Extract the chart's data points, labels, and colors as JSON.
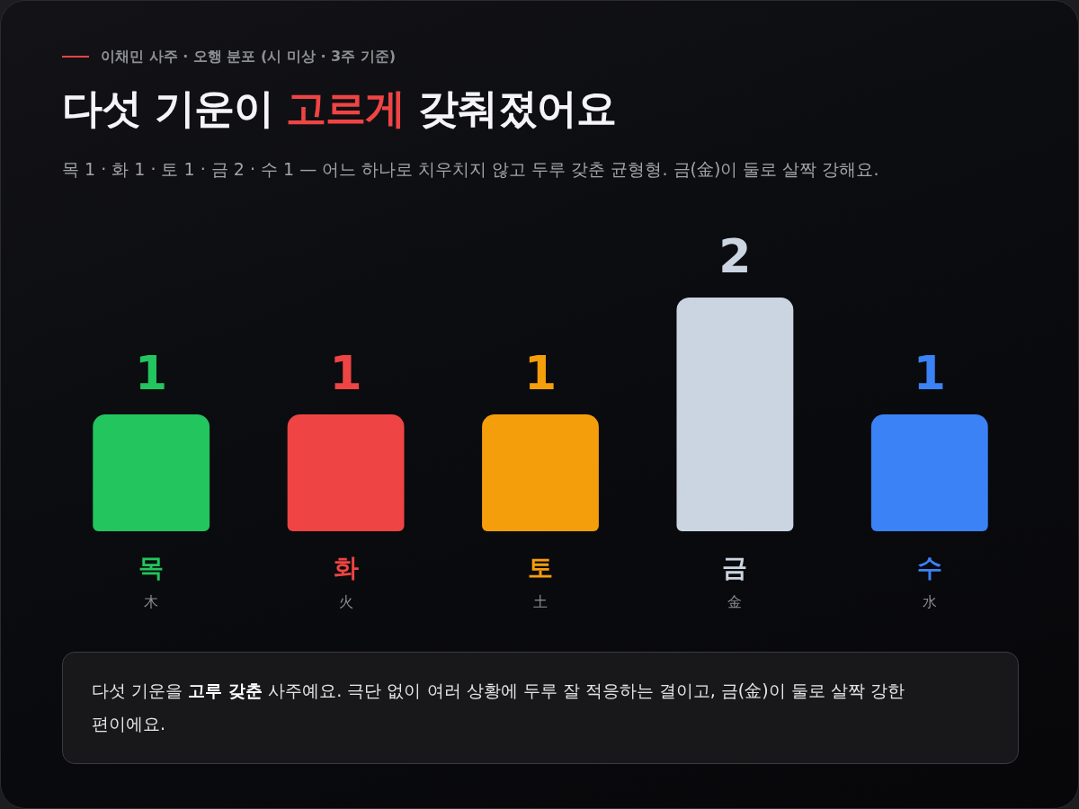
{
  "chart_data": {
    "type": "bar",
    "title": "다섯 기운이 고르게 갖춰졌어요",
    "subtitle": "목 1 · 화 1 · 토 1 · 금 2 · 수 1 — 어느 하나로 치우치지 않고 두루 갖춘 균형형. 금(金)이 둘로 살짝 강해요.",
    "categories": [
      "목\n木",
      "화\n火",
      "토\n土",
      "금\n金",
      "수\n水"
    ],
    "values": [
      1,
      1,
      1,
      2,
      1
    ],
    "colors": [
      "#22c55e",
      "#ef4444",
      "#f59e0b",
      "#cbd5e1",
      "#3b82f6"
    ],
    "data_labels": true,
    "tick_labels": "x",
    "annotations": [
      "이채민 사주 · 오행 분포 (시 미상 · 3주 기준)",
      "다섯 기운을 고루 갖춘 사주예요. 극단 없이 여러 상황에 두루 잘 적응하는 결이고, 금(金)이 둘로 살짝 강한 편이에요."
    ]
  }
}
